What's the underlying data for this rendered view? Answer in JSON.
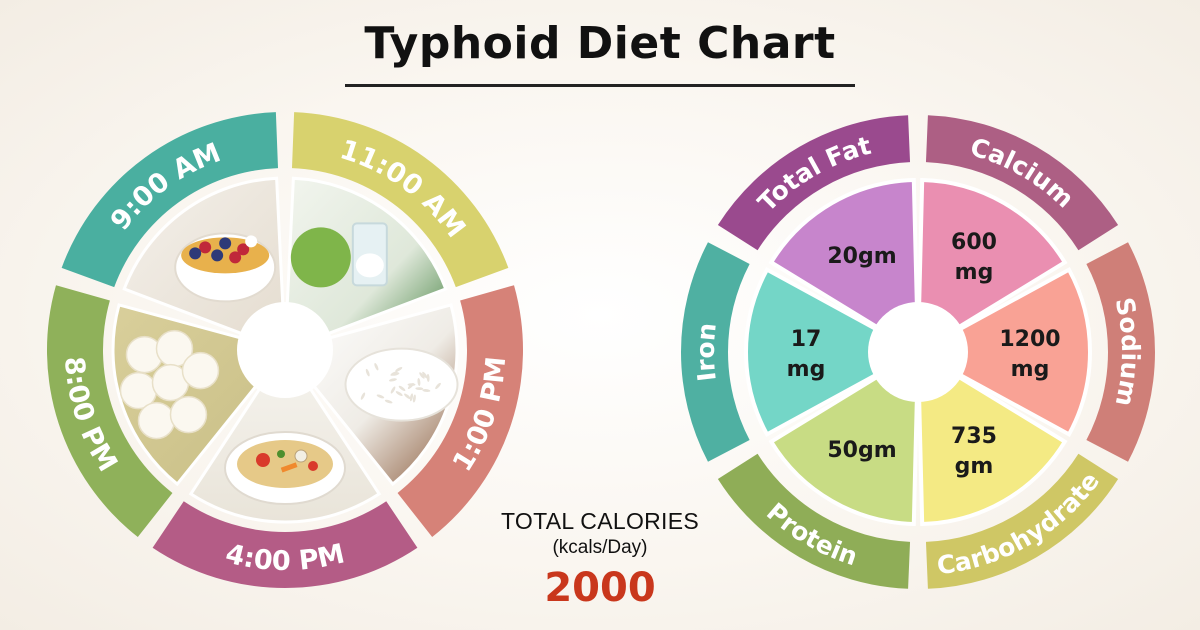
{
  "title": "Typhoid Diet Chart",
  "meal_schedule": {
    "times": [
      {
        "label": "9:00 AM",
        "color": "#4aafa0",
        "food": "cereal-bowl"
      },
      {
        "label": "11:00 AM",
        "color": "#d8d26e",
        "food": "coconut-water"
      },
      {
        "label": "1:00 PM",
        "color": "#d68278",
        "food": "rice"
      },
      {
        "label": "4:00 PM",
        "color": "#b45c86",
        "food": "vegetable-soup"
      },
      {
        "label": "8:00 PM",
        "color": "#8fb15a",
        "food": "rasgulla"
      }
    ]
  },
  "nutrients": [
    {
      "name": "Total Fat",
      "value": "20gm",
      "ring_color": "#9a4a8e",
      "slice_color": "#c785cc"
    },
    {
      "name": "Calcium",
      "value": "600 mg",
      "ring_color": "#ad5f84",
      "slice_color": "#ea8fb1"
    },
    {
      "name": "Sodium",
      "value": "1200 mg",
      "ring_color": "#cf7f78",
      "slice_color": "#f9a295"
    },
    {
      "name": "Carbohydrate",
      "value": "735 gm",
      "ring_color": "#cfc765",
      "slice_color": "#f4ea84"
    },
    {
      "name": "Protein",
      "value": "50gm",
      "ring_color": "#8fad57",
      "slice_color": "#c8dc84"
    },
    {
      "name": "Iron",
      "value": "17 mg",
      "ring_color": "#4fb0a2",
      "slice_color": "#74d6c7"
    }
  ],
  "total_calories": {
    "label": "TOTAL CALORIES",
    "unit": "(kcals/Day)",
    "value": "2000"
  }
}
